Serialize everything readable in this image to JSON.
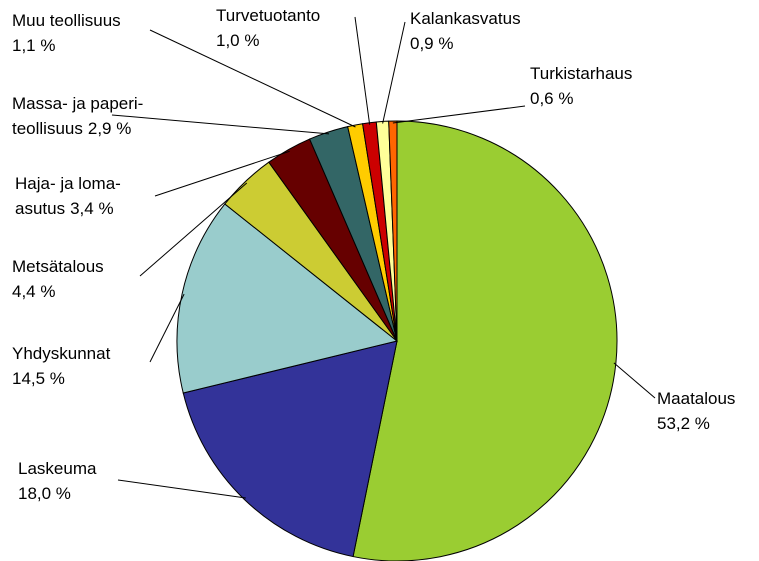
{
  "chart_data": {
    "type": "pie",
    "categories": [
      "Maatalous",
      "Laskeuma",
      "Yhdyskunnat",
      "Metsätalous",
      "Haja- ja loma-\nasutus",
      "Massa- ja paperi-\nteollisuus",
      "Muu teollisuus",
      "Turvetuotanto",
      "Kalankasvatus",
      "Turkistarhaus"
    ],
    "values": [
      53.2,
      18.0,
      14.5,
      4.4,
      3.4,
      2.9,
      1.1,
      1.0,
      0.9,
      0.6
    ],
    "value_labels": [
      "53,2 %",
      "18,0 %",
      "14,5 %",
      "4,4 %",
      "3,4 %",
      "2,9 %",
      "1,1 %",
      "1,0 %",
      "0,9 %",
      "0,6 %"
    ],
    "colors": [
      "#9acd32",
      "#333399",
      "#99cccc",
      "#cccc33",
      "#660000",
      "#336666",
      "#ffcc00",
      "#cc0000",
      "#ffff99",
      "#ff6600"
    ]
  }
}
